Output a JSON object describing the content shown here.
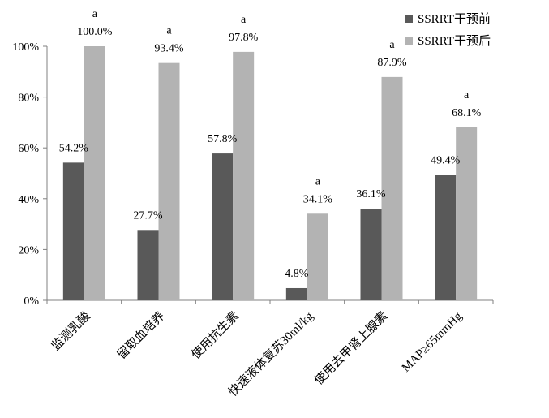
{
  "chart_data": {
    "type": "bar",
    "categories": [
      "监测乳酸",
      "留取血培养",
      "使用抗生素",
      "快速液体复苏30ml/kg",
      "使用去甲肾上腺素",
      "MAP≥65mmHg"
    ],
    "series": [
      {
        "name": "SSRRT干预前",
        "color": "#595959",
        "values": [
          54.2,
          27.7,
          57.8,
          4.8,
          36.1,
          49.4
        ],
        "labels": [
          "54.2%",
          "27.7%",
          "57.8%",
          "4.8%",
          "36.1%",
          "49.4%"
        ],
        "marks": [
          "",
          "",
          "",
          "",
          "",
          ""
        ]
      },
      {
        "name": "SSRRT干预后",
        "color": "#b3b3b3",
        "values": [
          100.0,
          93.4,
          97.8,
          34.1,
          87.9,
          68.1
        ],
        "labels": [
          "100.0%",
          "93.4%",
          "97.8%",
          "34.1%",
          "87.9%",
          "68.1%"
        ],
        "marks": [
          "a",
          "a",
          "a",
          "a",
          "a",
          "a"
        ]
      }
    ],
    "yticks": [
      0,
      20,
      40,
      60,
      80,
      100
    ],
    "ytick_labels": [
      "0%",
      "20%",
      "40%",
      "60%",
      "80%",
      "100%"
    ],
    "ylim": [
      0,
      100
    ],
    "grid": false,
    "legend_position": "top-right"
  }
}
